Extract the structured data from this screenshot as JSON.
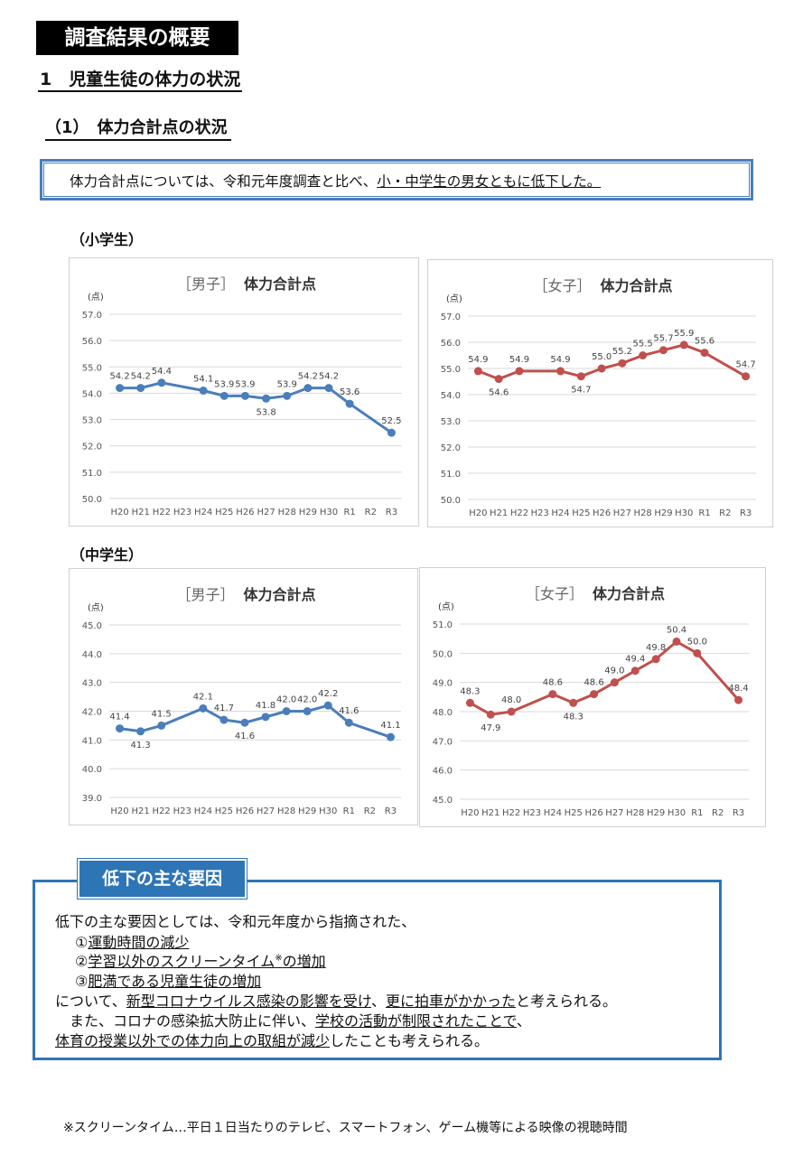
{
  "page_title": "調査結果の概要",
  "section1": "1　児童生徒の体力の状況",
  "section1_sub": "（1）　体力合計点の状況",
  "summary": {
    "prefix": "体力合計点については、令和元年度調査と比べ、",
    "highlight": "小・中学生の男女ともに低下した。"
  },
  "elementary_label": "（小学生）",
  "junior_label": "（中学生）",
  "chart_data": [
    {
      "type": "line",
      "group": "小学生",
      "title_bracket": "［男子］",
      "title": "体力合計点",
      "ylabel": "(点)",
      "color": "#4a7ebb",
      "categories": [
        "H20",
        "H21",
        "H22",
        "H23",
        "H24",
        "H25",
        "H26",
        "H27",
        "H28",
        "H29",
        "H30",
        "R1",
        "R2",
        "R3"
      ],
      "values": [
        54.2,
        54.2,
        54.4,
        null,
        54.1,
        53.9,
        53.9,
        53.8,
        53.9,
        54.2,
        54.2,
        53.6,
        null,
        52.5
      ],
      "ylim": [
        50.0,
        57.0
      ],
      "yticks": [
        "57.0",
        "56.0",
        "55.0",
        "54.0",
        "53.0",
        "52.0",
        "51.0",
        "50.0"
      ],
      "labels": [
        "54.2",
        "54.2",
        "54.4",
        "",
        "54.1",
        "53.9",
        "53.9",
        "53.8",
        "53.9",
        "54.2",
        "54.2",
        "53.6",
        "",
        "52.5"
      ],
      "grid": true
    },
    {
      "type": "line",
      "group": "小学生",
      "title_bracket": "［女子］",
      "title": "体力合計点",
      "ylabel": "(点)",
      "color": "#c0504d",
      "categories": [
        "H20",
        "H21",
        "H22",
        "H23",
        "H24",
        "H25",
        "H26",
        "H27",
        "H28",
        "H29",
        "H30",
        "R1",
        "R2",
        "R3"
      ],
      "values": [
        54.9,
        54.6,
        54.9,
        null,
        54.9,
        54.7,
        55.0,
        55.2,
        55.5,
        55.7,
        55.9,
        55.6,
        null,
        54.7
      ],
      "ylim": [
        50.0,
        57.0
      ],
      "yticks": [
        "57.0",
        "56.0",
        "55.0",
        "54.0",
        "53.0",
        "52.0",
        "51.0",
        "50.0"
      ],
      "labels": [
        "54.9",
        "54.6",
        "54.9",
        "",
        "54.9",
        "54.7",
        "55.0",
        "55.2",
        "55.5",
        "55.7",
        "55.9",
        "55.6",
        "",
        "54.7"
      ],
      "grid": true
    },
    {
      "type": "line",
      "group": "中学生",
      "title_bracket": "［男子］",
      "title": "体力合計点",
      "ylabel": "(点)",
      "color": "#4a7ebb",
      "categories": [
        "H20",
        "H21",
        "H22",
        "H23",
        "H24",
        "H25",
        "H26",
        "H27",
        "H28",
        "H29",
        "H30",
        "R1",
        "R2",
        "R3"
      ],
      "values": [
        41.4,
        41.3,
        41.5,
        null,
        42.1,
        41.7,
        41.6,
        41.8,
        42.0,
        42.0,
        42.2,
        41.6,
        null,
        41.1
      ],
      "ylim": [
        39.0,
        45.0
      ],
      "yticks": [
        "45.0",
        "44.0",
        "43.0",
        "42.0",
        "41.0",
        "40.0",
        "39.0"
      ],
      "labels": [
        "41.4",
        "41.3",
        "41.5",
        "",
        "42.1",
        "41.7",
        "41.6",
        "41.8",
        "42.0",
        "42.0",
        "42.2",
        "41.6",
        "",
        "41.1"
      ],
      "grid": true
    },
    {
      "type": "line",
      "group": "中学生",
      "title_bracket": "［女子］",
      "title": "体力合計点",
      "ylabel": "(点)",
      "color": "#c0504d",
      "categories": [
        "H20",
        "H21",
        "H22",
        "H23",
        "H24",
        "H25",
        "H26",
        "H27",
        "H28",
        "H29",
        "H30",
        "R1",
        "R2",
        "R3"
      ],
      "values": [
        48.3,
        47.9,
        48.0,
        null,
        48.6,
        48.3,
        48.6,
        49.0,
        49.4,
        49.8,
        50.4,
        50.0,
        null,
        48.4
      ],
      "ylim": [
        45.0,
        51.0
      ],
      "yticks": [
        "51.0",
        "50.0",
        "49.0",
        "48.0",
        "47.0",
        "46.0",
        "45.0"
      ],
      "labels": [
        "48.3",
        "47.9",
        "48.0",
        "",
        "48.6",
        "48.3",
        "48.6",
        "49.0",
        "49.4",
        "49.8",
        "50.4",
        "50.0",
        "",
        "48.4"
      ],
      "grid": true
    }
  ],
  "causes": {
    "tab_label": "低下の主な要因",
    "intro": "低下の主な要因としては、令和元年度から指摘された、",
    "item1_num": "①",
    "item1": "運動時間の減少",
    "item2_num": "②",
    "item2": "学習以外のスクリーンタイム",
    "item2_mark": "※",
    "item2_suffix": "の増加",
    "item3_num": "③",
    "item3": "肥満である児童生徒の増加",
    "line4_a": "について、",
    "line4_b": "新型コロナウイルス感染の影響を受け",
    "line4_c": "、",
    "line4_d": "更に拍車がかかった",
    "line4_e": "と考えられる。",
    "line5_a": "　また、コロナの感染拡大防止に伴い、",
    "line5_b": "学校の活動が制限されたことで",
    "line5_c": "、",
    "line6_a": "体育の授業以外での体力向上の取組が減少",
    "line6_b": "したことも考えられる。"
  },
  "footnote": "※スクリーンタイム…平日１日当たりのテレビ、スマートフォン、ゲーム機等による映像の視聴時間"
}
